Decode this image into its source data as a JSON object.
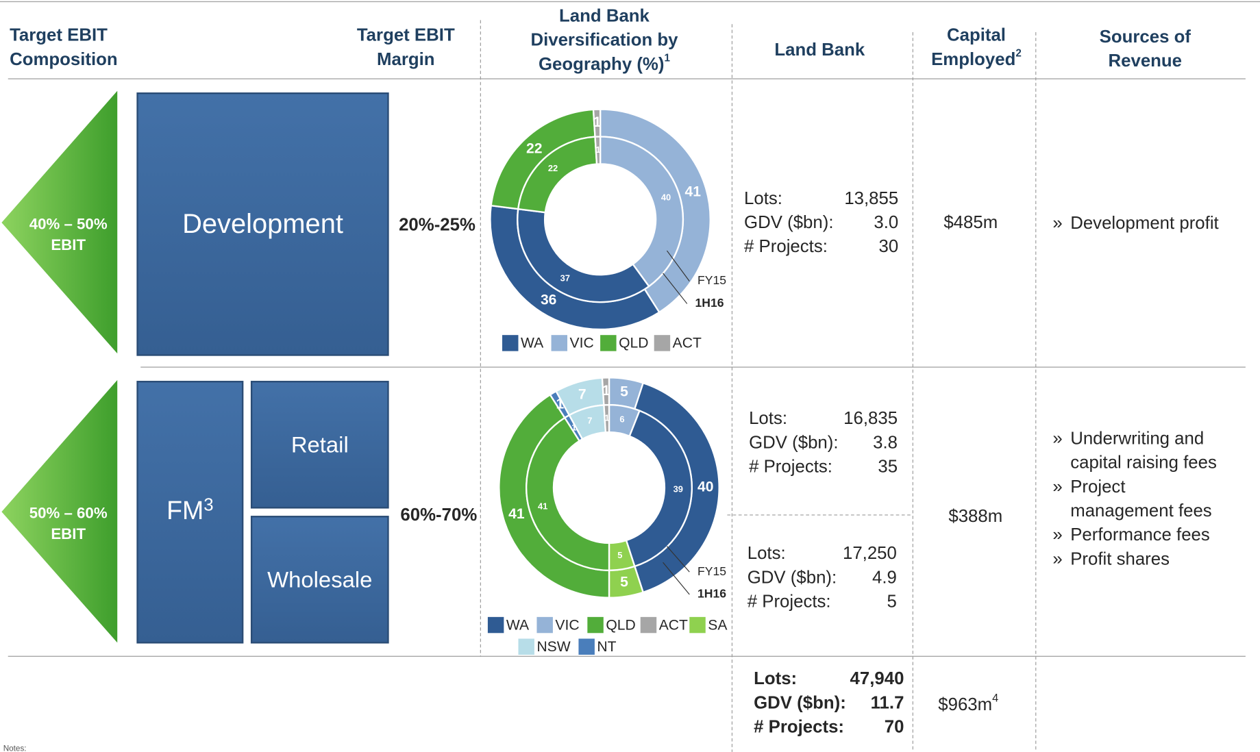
{
  "header": {
    "composition": [
      "Target EBIT",
      "Composition"
    ],
    "margin": [
      "Target EBIT",
      "Margin"
    ],
    "diversification": {
      "lines": [
        "Land Bank",
        "Diversification by",
        "Geography (%)"
      ],
      "sup": "1"
    },
    "land_bank": "Land Bank",
    "capital": {
      "lines": [
        "Capital",
        "Employed"
      ],
      "sup": "2"
    },
    "sources": [
      "Sources of",
      "Revenue"
    ]
  },
  "bullet": "»",
  "rows": [
    {
      "ebit": [
        "40% – 50%",
        "EBIT"
      ],
      "boxes": [
        {
          "label": "Development"
        }
      ],
      "margin": "20%-25%",
      "donut": {
        "type": "donut",
        "categories": [
          "VIC",
          "WA",
          "QLD",
          "ACT"
        ],
        "colors": {
          "WA": "#2f5b93",
          "VIC": "#95b3d7",
          "QLD": "#52ad3a",
          "ACT": "#a6a6a6"
        },
        "series": [
          {
            "name": "1H16",
            "values": [
              41,
              36,
              22,
              1
            ]
          },
          {
            "name": "FY15",
            "values": [
              40,
              37,
              22,
              1
            ]
          }
        ],
        "legend": [
          "WA",
          "VIC",
          "QLD",
          "ACT"
        ]
      },
      "land_bank": [
        [
          [
            "Lots:",
            "13,855"
          ],
          [
            "GDV ($bn):",
            "3.0"
          ],
          [
            "# Projects:",
            "30"
          ]
        ]
      ],
      "capital": "$485m",
      "sources": [
        [
          "Development profit"
        ]
      ]
    },
    {
      "ebit": [
        "50% – 60%",
        "EBIT"
      ],
      "boxes": [
        {
          "label": "FM",
          "sup": "3"
        },
        {
          "label": "Retail"
        },
        {
          "label": "Wholesale"
        }
      ],
      "margin": "60%-70%",
      "donut": {
        "type": "donut",
        "categories": [
          "VIC",
          "WA",
          "SA",
          "QLD",
          "NT",
          "NSW",
          "ACT"
        ],
        "colors": {
          "WA": "#2f5b93",
          "VIC": "#95b3d7",
          "QLD": "#52ad3a",
          "ACT": "#a6a6a6",
          "SA": "#8fd14f",
          "NSW": "#b7dde8",
          "NT": "#4a7ebb"
        },
        "series": [
          {
            "name": "1H16",
            "values": [
              5,
              40,
              5,
              41,
              1,
              7,
              1
            ]
          },
          {
            "name": "FY15",
            "values": [
              6,
              39,
              5,
              41,
              1,
              7,
              1
            ]
          }
        ],
        "legend": [
          "WA",
          "VIC",
          "QLD",
          "ACT",
          "SA",
          "NSW",
          "NT"
        ]
      },
      "land_bank": [
        [
          [
            "Lots:",
            "16,835"
          ],
          [
            "GDV ($bn):",
            "3.8"
          ],
          [
            "# Projects:",
            "35"
          ]
        ],
        [
          [
            "Lots:",
            "17,250"
          ],
          [
            "GDV ($bn):",
            "4.9"
          ],
          [
            "# Projects:",
            "5"
          ]
        ]
      ],
      "capital": "$388m",
      "sources": [
        [
          "Underwriting and",
          "capital raising fees"
        ],
        [
          "Project",
          "management fees"
        ],
        [
          "Performance fees"
        ],
        [
          "Profit shares"
        ]
      ]
    }
  ],
  "total": {
    "land_bank": [
      [
        "Lots:",
        "47,940"
      ],
      [
        "GDV ($bn):",
        "11.7"
      ],
      [
        "# Projects:",
        "70"
      ]
    ],
    "capital": {
      "text": "$963m",
      "sup": "4"
    }
  },
  "notes": "Notes:"
}
